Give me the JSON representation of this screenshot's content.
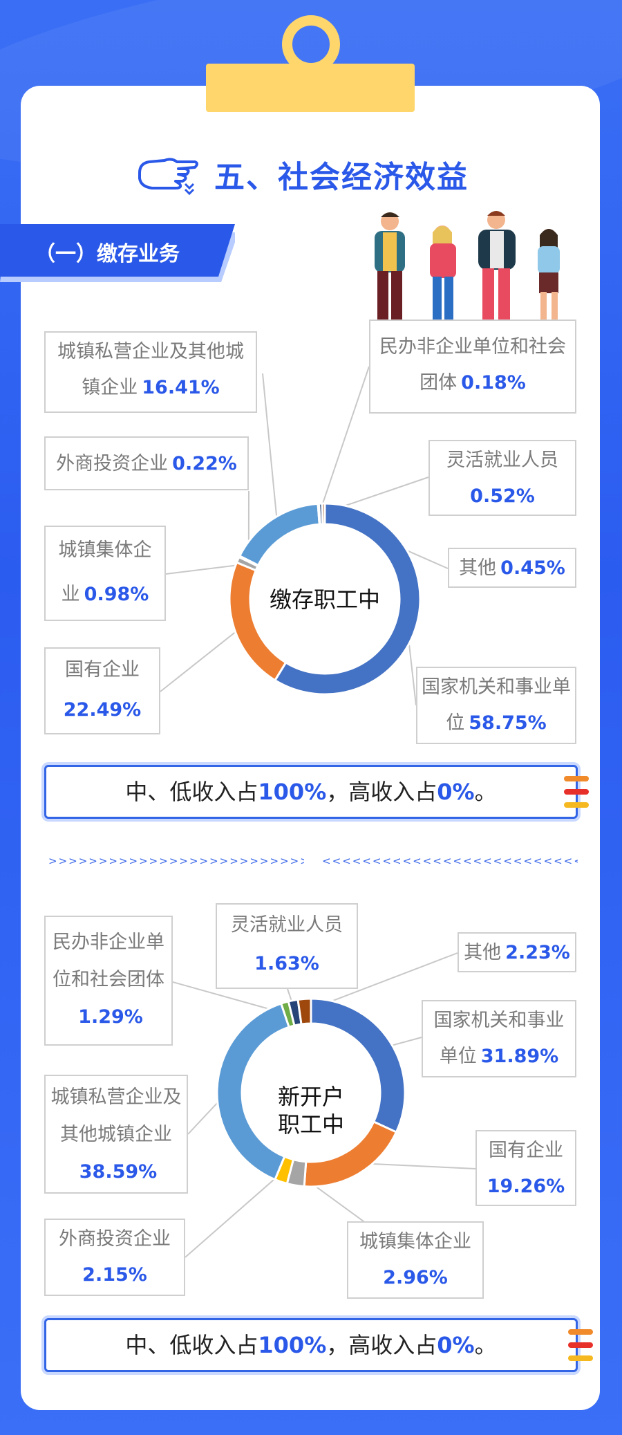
{
  "header": {
    "title": "五、社会经济效益",
    "section": "（一）缴存业务"
  },
  "chart1": {
    "center": "缴存职工中",
    "labels": [
      {
        "name": "城镇私营企业及其他城镇企业",
        "pct": "16.41%"
      },
      {
        "name": "民办非企业单位和社会团体",
        "pct": "0.18%"
      },
      {
        "name": "外商投资企业",
        "pct": "0.22%"
      },
      {
        "name": "灵活就业人员",
        "pct": "0.52%"
      },
      {
        "name": "城镇集体企业",
        "pct": "0.98%"
      },
      {
        "name": "其他",
        "pct": "0.45%"
      },
      {
        "name": "国有企业",
        "pct": "22.49%"
      },
      {
        "name": "国家机关和事业单位",
        "pct": "58.75%"
      }
    ]
  },
  "chart2": {
    "center_line1": "新开户",
    "center_line2": "职工中",
    "labels": [
      {
        "name": "民办非企业单位和社会团体",
        "pct": "1.29%"
      },
      {
        "name": "灵活就业人员",
        "pct": "1.63%"
      },
      {
        "name": "其他",
        "pct": "2.23%"
      },
      {
        "name": "国家机关和事业单位",
        "pct": "31.89%"
      },
      {
        "name": "城镇私营企业及其他城镇企业",
        "pct": "38.59%"
      },
      {
        "name": "国有企业",
        "pct": "19.26%"
      },
      {
        "name": "外商投资企业",
        "pct": "2.15%"
      },
      {
        "name": "城镇集体企业",
        "pct": "2.96%"
      }
    ]
  },
  "info1": {
    "p1": "中、低收入占",
    "v1": "100%",
    "p2": "，高收入占",
    "v2": "0%",
    "p3": "。"
  },
  "info2": {
    "p1": "中、低收入占",
    "v1": "100%",
    "p2": "，高收入占",
    "v2": "0%",
    "p3": "。"
  },
  "divider": {
    "left": ">>>>>>>>>>>>>>>>>>>>>>>>>>>>>>>>",
    "right": "<<<<<<<<<<<<<<<<<<<<<<<<<<<<<<<<<<<"
  },
  "chart_data": [
    {
      "type": "pie",
      "title": "缴存职工中",
      "categories": [
        "国家机关和事业单位",
        "国有企业",
        "城镇集体企业",
        "外商投资企业",
        "城镇私营企业及其他城镇企业",
        "民办非企业单位和社会团体",
        "灵活就业人员",
        "其他"
      ],
      "values": [
        58.75,
        22.49,
        0.98,
        0.22,
        16.41,
        0.18,
        0.52,
        0.45
      ],
      "colors": [
        "#4472c4",
        "#ed7d31",
        "#a5a5a5",
        "#ffc000",
        "#5b9bd5",
        "#70ad47",
        "#264478",
        "#9e480e"
      ]
    },
    {
      "type": "pie",
      "title": "新开户职工中",
      "categories": [
        "国家机关和事业单位",
        "国有企业",
        "城镇集体企业",
        "外商投资企业",
        "城镇私营企业及其他城镇企业",
        "民办非企业单位和社会团体",
        "灵活就业人员",
        "其他"
      ],
      "values": [
        31.89,
        19.26,
        2.96,
        2.15,
        38.59,
        1.29,
        1.63,
        2.23
      ],
      "colors": [
        "#4472c4",
        "#ed7d31",
        "#a5a5a5",
        "#ffc000",
        "#5b9bd5",
        "#70ad47",
        "#264478",
        "#9e480e"
      ]
    }
  ],
  "colors": {
    "accent": "#2a58e8",
    "clip": "#ffd66b",
    "stripe1": "#f08a2a",
    "stripe2": "#e8302a",
    "stripe3": "#f5b820"
  }
}
